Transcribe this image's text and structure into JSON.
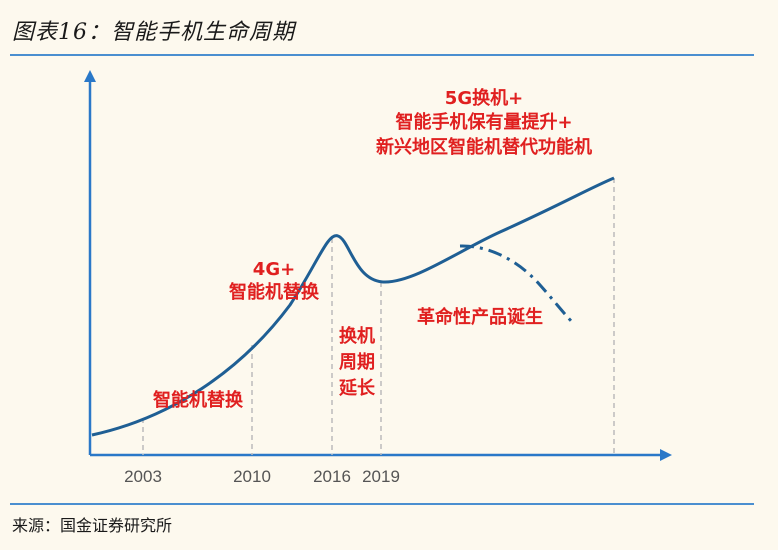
{
  "title": "图表16：智能手机生命周期",
  "source": "来源：国金证券研究所",
  "years": [
    "2003",
    "2010",
    "2016",
    "2019"
  ],
  "labels": {
    "phase1": "智能机替换",
    "phase2": [
      "4G+",
      "智能机替换"
    ],
    "phase3": [
      "换机",
      "周期",
      "延长"
    ],
    "phase4": [
      "5G换机+",
      "智能手机保有量提升+",
      "新兴地区智能机替代功能机"
    ],
    "branch": "革命性产品诞生"
  },
  "colors": {
    "curve": "#1f5f94",
    "axis": "#2a78c8",
    "label": "#e02020"
  }
}
